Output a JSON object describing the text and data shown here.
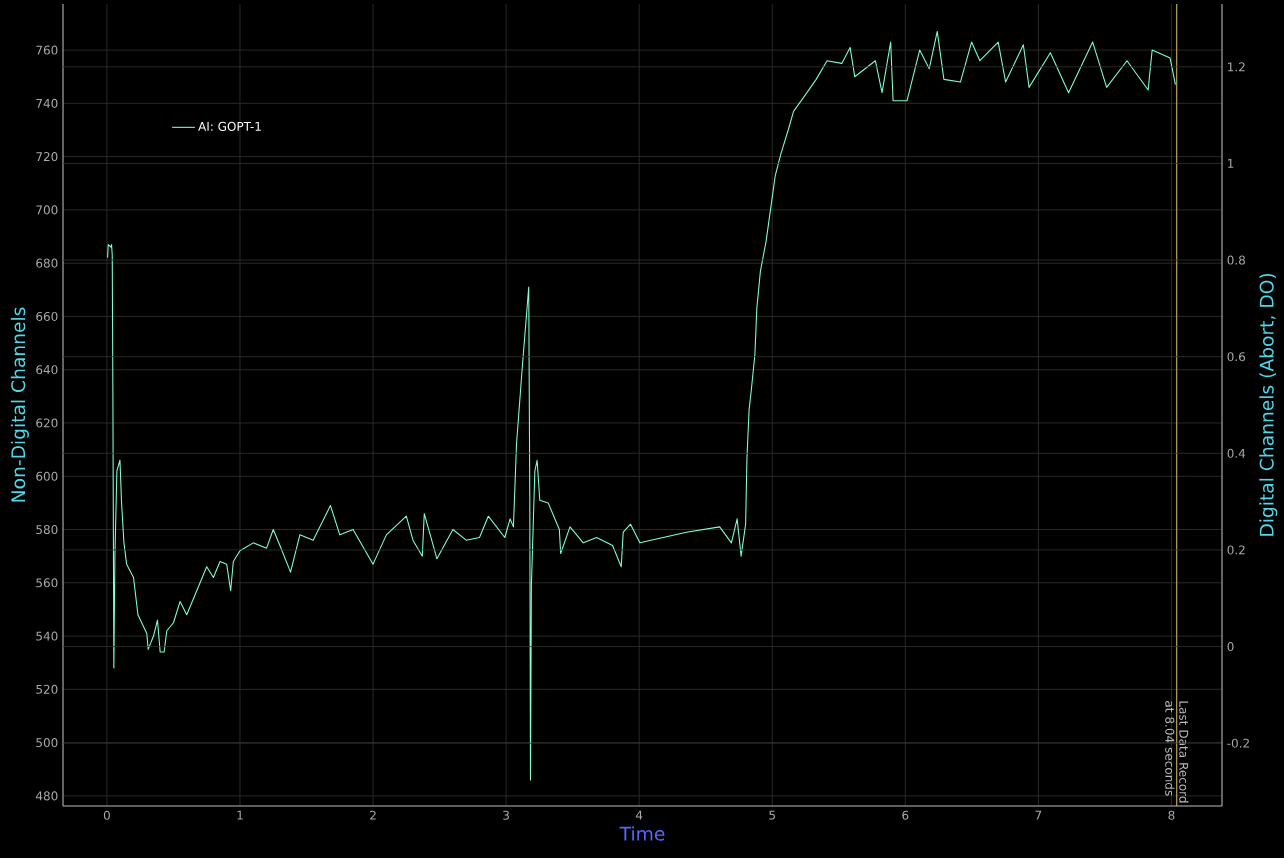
{
  "chart_data": {
    "type": "line",
    "xlabel": "Time",
    "ylabel": "Non-Digital Channels",
    "y2label": "Digital Channels (Abort, DO)",
    "xlim": [
      -0.33,
      8.38
    ],
    "ylim": [
      476.2,
      777.3
    ],
    "y2lim": [
      -0.33,
      1.33
    ],
    "xticks": [
      0,
      1,
      2,
      3,
      4,
      5,
      6,
      7,
      8
    ],
    "yticks": [
      480,
      500,
      520,
      540,
      560,
      580,
      600,
      620,
      640,
      660,
      680,
      700,
      720,
      740,
      760
    ],
    "y2ticks": [
      -0.2,
      0,
      0.2,
      0.4,
      0.6,
      0.8,
      1,
      1.2
    ],
    "grid": true,
    "legend": "top left",
    "marker": "none",
    "line_style": "solid",
    "ref_lines": [
      {
        "axis": "x",
        "value": 8.04,
        "label": "Last Data Record at 8.04 seconds",
        "color": "#c8b45a"
      }
    ],
    "series": [
      {
        "name": "AI: GOPT-1",
        "color": "#7fffd4",
        "x": [
          0.005,
          0.01,
          0.03,
          0.035,
          0.04,
          0.045,
          0.052,
          0.06,
          0.075,
          0.098,
          0.11,
          0.128,
          0.148,
          0.2,
          0.233,
          0.3,
          0.31,
          0.35,
          0.38,
          0.4,
          0.43,
          0.45,
          0.5,
          0.55,
          0.6,
          0.65,
          0.7,
          0.75,
          0.8,
          0.85,
          0.9,
          0.93,
          0.95,
          1.0,
          1.1,
          1.2,
          1.25,
          1.3,
          1.38,
          1.45,
          1.55,
          1.68,
          1.75,
          1.85,
          2.0,
          2.1,
          2.25,
          2.3,
          2.37,
          2.385,
          2.48,
          2.6,
          2.7,
          2.8,
          2.866,
          2.99,
          3.03,
          3.055,
          3.078,
          3.12,
          3.17,
          3.178,
          3.183,
          3.19,
          3.216,
          3.233,
          3.253,
          3.316,
          3.4,
          3.41,
          3.48,
          3.58,
          3.68,
          3.8,
          3.865,
          3.88,
          3.935,
          4.005,
          4.18,
          4.355,
          4.605,
          4.693,
          4.736,
          4.766,
          4.8,
          4.81,
          4.826,
          4.842,
          4.87,
          4.884,
          4.911,
          4.953,
          4.995,
          5.023,
          5.065,
          5.12,
          5.16,
          5.246,
          5.33,
          5.412,
          5.523,
          5.585,
          5.62,
          5.775,
          5.825,
          5.89,
          5.908,
          6.013,
          6.108,
          6.18,
          6.24,
          6.29,
          6.414,
          6.498,
          6.56,
          6.698,
          6.754,
          6.887,
          6.93,
          7.09,
          7.227,
          7.408,
          7.513,
          7.666,
          7.825,
          7.855,
          7.99,
          8.03
        ],
        "values": [
          682,
          687,
          686,
          687,
          683,
          629,
          528,
          570,
          602,
          606,
          590,
          575,
          567,
          562,
          548,
          541,
          535,
          540,
          546,
          534,
          534,
          542,
          545,
          553,
          548,
          554,
          560,
          566,
          562,
          568,
          567,
          557,
          568,
          572,
          575,
          573,
          580,
          574,
          564,
          578,
          576,
          589,
          578,
          580,
          567,
          578,
          585,
          576,
          570,
          586,
          569,
          580,
          576,
          577,
          585,
          577,
          584,
          581,
          612,
          640,
          671,
          591,
          486,
          559,
          602,
          606,
          591,
          590,
          580,
          571,
          581,
          575,
          577,
          574,
          566,
          579,
          582,
          575,
          577,
          579,
          581,
          575,
          584,
          570,
          582,
          607,
          625,
          632,
          646,
          663,
          677,
          688,
          703,
          713,
          721,
          730,
          737,
          743,
          749,
          756,
          755,
          761,
          750,
          756,
          744,
          763,
          741,
          741,
          760,
          753,
          767,
          749,
          748,
          763,
          756,
          763,
          748,
          762,
          746,
          759,
          744,
          763,
          746,
          756,
          745,
          760,
          757,
          747
        ]
      }
    ]
  }
}
